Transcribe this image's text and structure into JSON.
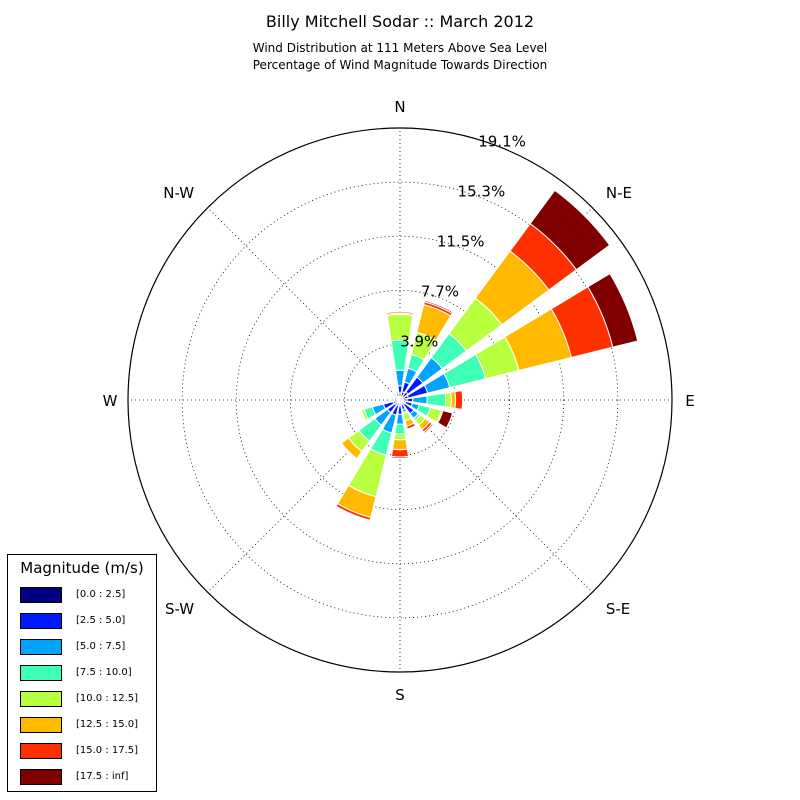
{
  "header": {
    "title": "Billy Mitchell Sodar :: March 2012",
    "subtitle_line1": "Wind Distribution at 111 Meters Above Sea Level",
    "subtitle_line2": "Percentage of Wind Magnitude Towards Direction"
  },
  "chart_data": {
    "type": "windrose",
    "title": "Billy Mitchell Sodar :: March 2012",
    "subtitle": "Wind Distribution at 111 Meters Above Sea Level / Percentage of Wind Magnitude Towards Direction",
    "directions": [
      "N",
      "N-E",
      "E",
      "S-E",
      "S",
      "S-W",
      "W",
      "N-W"
    ],
    "radial_ticks": [
      "3.9%",
      "7.7%",
      "11.5%",
      "15.3%",
      "19.1%"
    ],
    "radial_tick_values": [
      3.9,
      7.7,
      11.5,
      15.3,
      19.1
    ],
    "rmax": 19.1,
    "grid": true,
    "legend": {
      "title": "Magnitude (m/s)",
      "placement": "lower-left",
      "bins": [
        "[0.0 : 2.5]",
        "[2.5 : 5.0]",
        "[5.0 : 7.5]",
        "[7.5 : 10.0]",
        "[10.0 : 12.5]",
        "[12.5 : 15.0]",
        "[15.0 : 17.5]",
        "[17.5 : inf]"
      ],
      "colors": [
        "#000080",
        "#0019ff",
        "#00a4ff",
        "#3fffb7",
        "#b7ff3f",
        "#ffb900",
        "#ff3000",
        "#800000"
      ]
    },
    "sector_width_deg": 22.5,
    "sectors": [
      {
        "direction_deg": 0,
        "cumulative": [
          0.5,
          1.0,
          2.1,
          4.2,
          6.0,
          6.1,
          6.2,
          6.2
        ]
      },
      {
        "direction_deg": 22.5,
        "cumulative": [
          0.6,
          1.3,
          2.3,
          3.3,
          4.9,
          6.9,
          7.1,
          7.2
        ]
      },
      {
        "direction_deg": 45,
        "cumulative": [
          0.7,
          2.0,
          3.7,
          5.8,
          8.9,
          13.0,
          15.4,
          18.3
        ]
      },
      {
        "direction_deg": 67.5,
        "cumulative": [
          0.6,
          2.0,
          3.6,
          6.2,
          8.6,
          12.4,
          15.4,
          17.2
        ]
      },
      {
        "direction_deg": 90,
        "cumulative": [
          0.5,
          0.9,
          1.9,
          3.2,
          3.6,
          3.9,
          4.4,
          4.4
        ]
      },
      {
        "direction_deg": 112.5,
        "cumulative": [
          0.4,
          0.9,
          1.4,
          2.2,
          3.0,
          3.1,
          3.1,
          3.8
        ]
      },
      {
        "direction_deg": 135,
        "cumulative": [
          0.4,
          1.2,
          1.6,
          1.8,
          2.2,
          2.6,
          2.8,
          2.9
        ]
      },
      {
        "direction_deg": 157.5,
        "cumulative": [
          0.3,
          0.7,
          0.9,
          1.0,
          1.5,
          1.9,
          2.1,
          2.1
        ]
      },
      {
        "direction_deg": 180,
        "cumulative": [
          0.4,
          1.0,
          1.7,
          2.4,
          2.8,
          3.5,
          4.0,
          4.1
        ]
      },
      {
        "direction_deg": 202.5,
        "cumulative": [
          0.4,
          1.1,
          2.4,
          4.0,
          7.0,
          8.5,
          8.7,
          8.7
        ]
      },
      {
        "direction_deg": 225,
        "cumulative": [
          0.4,
          1.1,
          2.2,
          3.6,
          4.5,
          5.1,
          5.1,
          5.1
        ]
      },
      {
        "direction_deg": 247.5,
        "cumulative": [
          0.5,
          1.2,
          2.0,
          2.6,
          2.8,
          2.8,
          2.8,
          2.8
        ]
      },
      {
        "direction_deg": 270,
        "cumulative": [
          0.2,
          0.4,
          0.5,
          0.6,
          0.7,
          0.7,
          0.7,
          0.7
        ]
      },
      {
        "direction_deg": 292.5,
        "cumulative": [
          0.2,
          0.4,
          0.4,
          0.4,
          0.4,
          0.4,
          0.4,
          0.4
        ]
      },
      {
        "direction_deg": 315,
        "cumulative": [
          0.3,
          0.4,
          0.5,
          0.6,
          0.6,
          0.6,
          0.6,
          0.6
        ]
      },
      {
        "direction_deg": 337.5,
        "cumulative": [
          0.3,
          0.5,
          0.6,
          0.6,
          0.6,
          0.6,
          0.6,
          0.6
        ]
      }
    ]
  }
}
